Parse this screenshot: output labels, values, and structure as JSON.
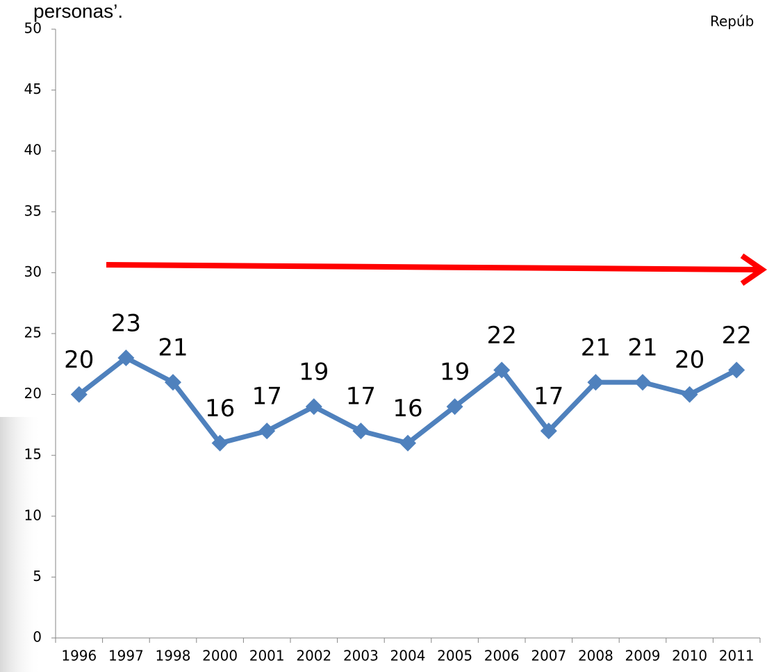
{
  "chart_data": {
    "type": "line",
    "annotations": [
      "personas’.",
      "Repúb"
    ],
    "categories": [
      "1996",
      "1997",
      "1998",
      "2000",
      "2001",
      "2002",
      "2003",
      "2004",
      "2005",
      "2006",
      "2007",
      "2008",
      "2009",
      "2010",
      "2011"
    ],
    "series": [
      {
        "color": "#4f81bd",
        "values": [
          20,
          23,
          21,
          16,
          17,
          19,
          17,
          16,
          19,
          22,
          17,
          21,
          21,
          20,
          22
        ]
      }
    ],
    "ylim": [
      0,
      50
    ],
    "yticks": [
      0,
      5,
      10,
      15,
      20,
      25,
      30,
      35,
      40,
      45,
      50
    ]
  }
}
